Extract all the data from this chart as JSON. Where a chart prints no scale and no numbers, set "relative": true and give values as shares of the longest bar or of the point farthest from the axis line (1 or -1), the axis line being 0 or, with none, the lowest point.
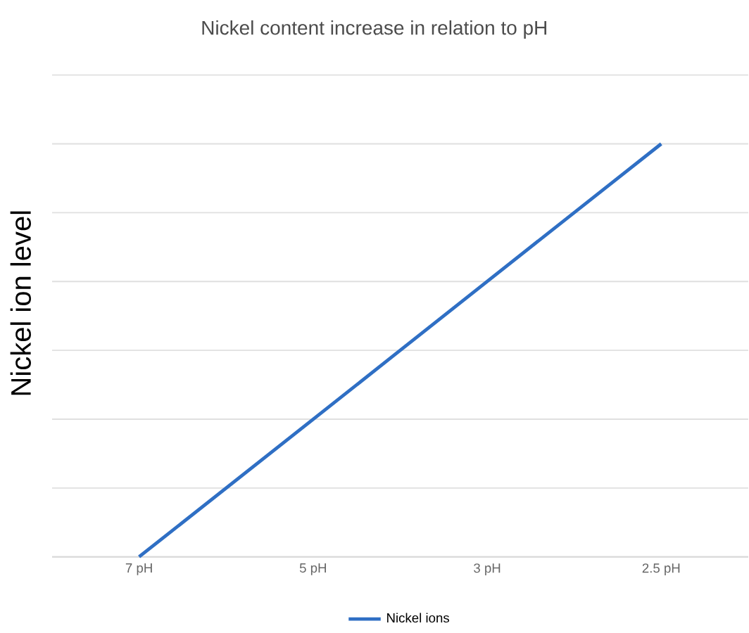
{
  "chart_data": {
    "type": "line",
    "title": "Nickel content increase in relation to pH",
    "ylabel": "Nickel ion level",
    "categories": [
      "7 pH",
      "5 pH",
      "3 pH",
      "2.5 pH"
    ],
    "series": [
      {
        "name": "Nickel ions",
        "color": "#2f6fc4",
        "values": [
          0,
          0.333,
          0.667,
          1
        ]
      }
    ],
    "relative": true,
    "grid": "y",
    "legend": "bottom",
    "marker": "none"
  }
}
